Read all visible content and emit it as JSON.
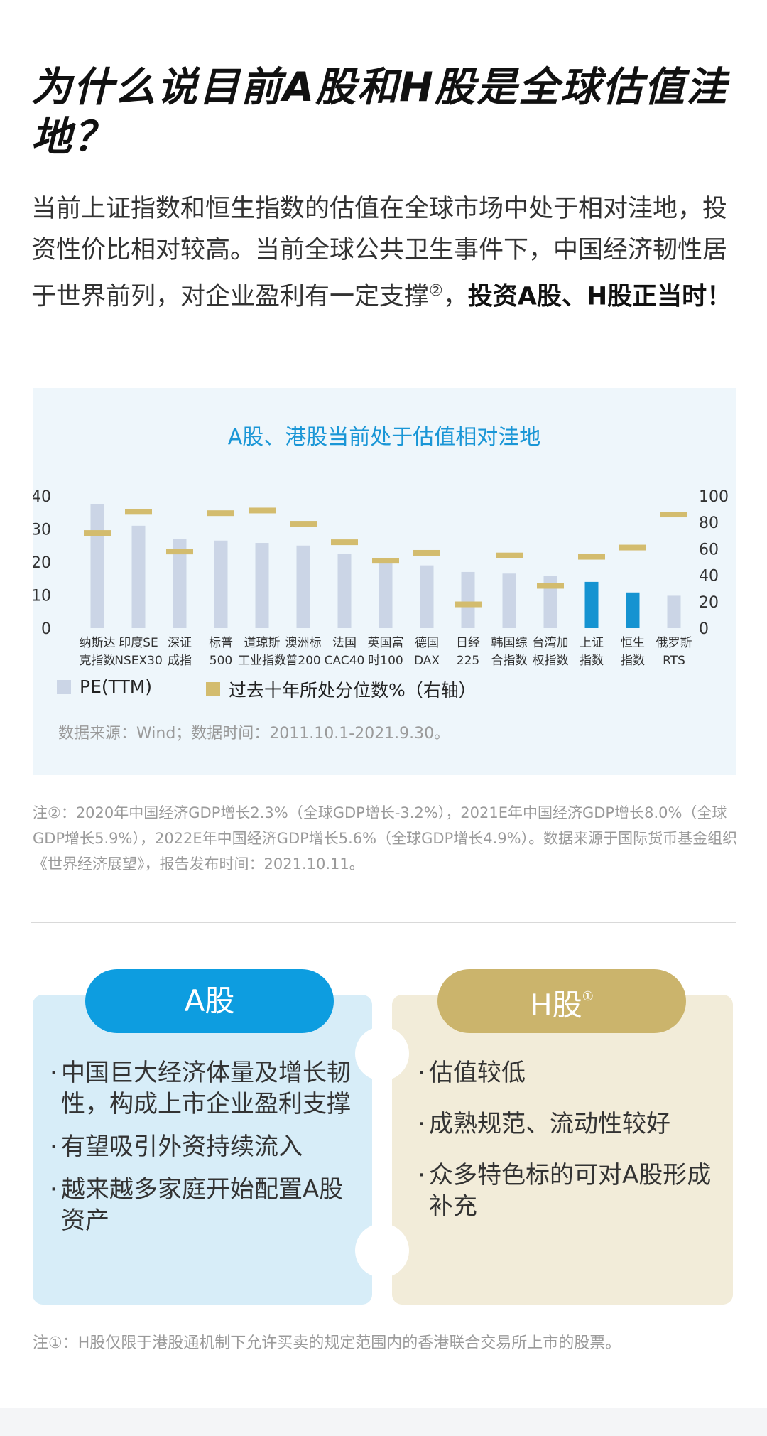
{
  "title": "为什么说目前A股和H股是全球估值洼地？",
  "intro": {
    "text": "当前上证指数和恒生指数的估值在全球市场中处于相对洼地，投资性价比相对较高。当前全球公共卫生事件下，中国经济韧性居于世界前列，对企业盈利有一定支撑",
    "ref": "②",
    "comma": "，",
    "strong": "投资A股、H股正当时！"
  },
  "chart_data": {
    "type": "bar",
    "title": "A股、港股当前处于估值相对洼地",
    "categories": [
      [
        "纳斯达",
        "克指数"
      ],
      [
        "印度SE",
        "NSEX30"
      ],
      [
        "深证",
        "成指"
      ],
      [
        "标普",
        "500"
      ],
      [
        "道琼斯",
        "工业指数"
      ],
      [
        "澳洲标",
        "普200"
      ],
      [
        "法国",
        "CAC40"
      ],
      [
        "英国富",
        "时100"
      ],
      [
        "德国",
        "DAX"
      ],
      [
        "日经",
        "225"
      ],
      [
        "韩国综",
        "合指数"
      ],
      [
        "台湾加",
        "权指数"
      ],
      [
        "上证",
        "指数"
      ],
      [
        "恒生",
        "指数"
      ],
      [
        "俄罗斯",
        "RTS"
      ]
    ],
    "series": [
      {
        "name": "PE(TTM)",
        "axis": "left",
        "values": [
          37.5,
          31,
          27,
          26.5,
          25.8,
          25,
          22.5,
          20.5,
          19,
          17,
          16.5,
          15.8,
          14,
          10.8,
          9.8
        ],
        "color": "#cbd5e6",
        "highlight_color": "#1593d1",
        "highlight_indices": [
          12,
          13
        ]
      },
      {
        "name": "过去十年所处分位数%（右轴）",
        "axis": "right",
        "values": [
          72,
          88,
          58,
          87,
          89,
          79,
          65,
          51,
          57,
          18,
          55,
          32,
          54,
          61,
          86
        ],
        "color": "#d3bc6e"
      }
    ],
    "y_left": {
      "ticks": [
        "0",
        "10",
        "20",
        "30",
        "40"
      ],
      "range": [
        0,
        40
      ]
    },
    "y_right": {
      "ticks": [
        "0",
        "20",
        "40",
        "60",
        "80",
        "100"
      ],
      "range": [
        0,
        100
      ]
    },
    "source": "数据来源：Wind；数据时间：2011.10.1-2021.9.30。",
    "legend_position": "bottom-left"
  },
  "note2": "注②：2020年中国经济GDP增长2.3%（全球GDP增长-3.2%），2021E年中国经济GDP增长8.0%（全球GDP增长5.9%），2022E年中国经济GDP增长5.6%（全球GDP增长4.9%）。数据来源于国际货币基金组织《世界经济展望》，报告发布时间：2021.10.11。",
  "cards": {
    "a": {
      "label": "A股",
      "bullets": [
        "中国巨大经济体量及增长韧性，构成上市企业盈利支撑",
        "有望吸引外资持续流入",
        "越来越多家庭开始配置A股资产"
      ]
    },
    "h": {
      "label": "H股",
      "sup": "①",
      "bullets": [
        "估值较低",
        "成熟规范、流动性较好",
        "众多特色标的可对A股形成补充"
      ]
    }
  },
  "note1": "注①：H股仅限于港股通机制下允许买卖的规定范围内的香港联合交易所上市的股票。"
}
